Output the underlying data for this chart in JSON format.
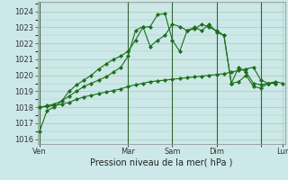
{
  "xlabel": "Pression niveau de la mer( hPa )",
  "bg_color": "#cce8e8",
  "grid_color": "#aaccaa",
  "line_color": "#1a6e1a",
  "vline_color": "#336633",
  "yticks": [
    1016,
    1017,
    1018,
    1019,
    1020,
    1021,
    1022,
    1023,
    1024
  ],
  "ylim": [
    1015.7,
    1024.6
  ],
  "xlim": [
    -0.3,
    33.3
  ],
  "series1_x": [
    0,
    1,
    2,
    3,
    4,
    5,
    6,
    7,
    8,
    9,
    10,
    11,
    12,
    13,
    14,
    15,
    16,
    17,
    18,
    19,
    20,
    21,
    22,
    23,
    24,
    25,
    26,
    27,
    28,
    29,
    30,
    31,
    32,
    33
  ],
  "series1_y": [
    1016.5,
    1017.8,
    1018.0,
    1018.4,
    1019.0,
    1019.4,
    1019.7,
    1020.0,
    1020.4,
    1020.7,
    1021.0,
    1021.2,
    1021.5,
    1022.2,
    1023.0,
    1023.05,
    1023.8,
    1023.85,
    1022.2,
    1021.5,
    1022.8,
    1023.0,
    1022.8,
    1023.2,
    1022.7,
    1022.5,
    1019.5,
    1019.6,
    1020.0,
    1019.3,
    1019.2,
    1019.5,
    1019.6,
    1019.5
  ],
  "series2_x": [
    0,
    1,
    2,
    3,
    4,
    5,
    6,
    7,
    8,
    9,
    10,
    11,
    12,
    13,
    14,
    15,
    16,
    17,
    18,
    19,
    20,
    21,
    22,
    23,
    24,
    25,
    26,
    27,
    28,
    29,
    30,
    31,
    32
  ],
  "series2_y": [
    1018.0,
    1018.1,
    1018.2,
    1018.4,
    1018.7,
    1019.0,
    1019.3,
    1019.5,
    1019.7,
    1019.9,
    1020.2,
    1020.5,
    1021.2,
    1022.8,
    1023.05,
    1021.8,
    1022.2,
    1022.5,
    1023.2,
    1023.05,
    1022.8,
    1022.9,
    1023.2,
    1023.0,
    1022.8,
    1022.5,
    1019.5,
    1020.5,
    1020.2,
    1019.5,
    1019.4,
    1019.5,
    1019.5
  ],
  "series3_x": [
    0,
    1,
    2,
    3,
    4,
    5,
    6,
    7,
    8,
    9,
    10,
    11,
    12,
    13,
    14,
    15,
    16,
    17,
    18,
    19,
    20,
    21,
    22,
    23,
    24,
    25,
    26,
    27,
    28,
    29,
    30,
    31,
    32
  ],
  "series3_y": [
    1018.0,
    1018.05,
    1018.1,
    1018.2,
    1018.3,
    1018.5,
    1018.65,
    1018.75,
    1018.85,
    1018.95,
    1019.05,
    1019.15,
    1019.3,
    1019.4,
    1019.5,
    1019.6,
    1019.65,
    1019.7,
    1019.75,
    1019.8,
    1019.85,
    1019.9,
    1019.95,
    1020.0,
    1020.05,
    1020.1,
    1020.2,
    1020.3,
    1020.4,
    1020.5,
    1019.7,
    1019.5,
    1019.5
  ],
  "vlines_x": [
    0,
    12,
    18,
    24,
    30
  ],
  "xtick_positions": [
    0,
    12,
    18,
    24,
    30,
    33
  ],
  "xtick_labels": [
    "Ven",
    "Mar",
    "Sam",
    "Dim",
    "",
    "Lun"
  ],
  "xlabel_fontsize": 7,
  "ytick_fontsize": 6,
  "xtick_fontsize": 6
}
